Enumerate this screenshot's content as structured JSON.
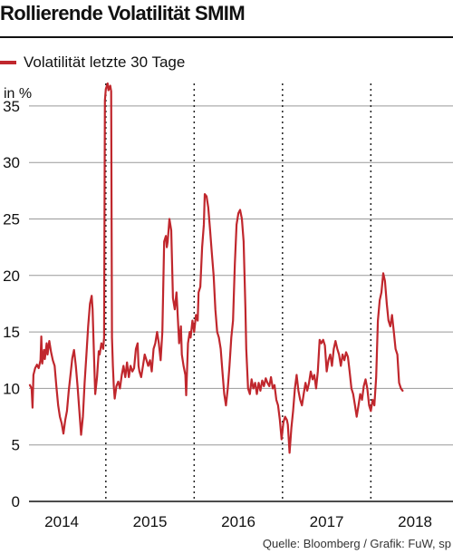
{
  "title": "Rollierende Volatilität SMIM",
  "legend": {
    "label": "Volatilität letzte 30 Tage",
    "color": "#c0272d"
  },
  "source": "Quelle: Bloomberg / Grafik: FuW, sp",
  "colors": {
    "line": "#c0272d",
    "grid": "#999999",
    "axis": "#111111"
  },
  "chart_data": {
    "type": "line",
    "title": "Rollierende Volatilität SMIM",
    "ylabel": "in %",
    "xlabel": "",
    "ylim": [
      0,
      37
    ],
    "xlim": [
      2013.63,
      2018.43
    ],
    "y_ticks": [
      0,
      5,
      10,
      15,
      20,
      25,
      30,
      35
    ],
    "x_ticks": [
      {
        "label": "2014",
        "value": 2014.0
      },
      {
        "label": "2015",
        "value": 2015.0
      },
      {
        "label": "2016",
        "value": 2016.0
      },
      {
        "label": "2017",
        "value": 2017.0
      },
      {
        "label": "2018",
        "value": 2018.0
      }
    ],
    "x_gridlines": [
      2014.5,
      2015.5,
      2016.5,
      2017.5
    ],
    "grid": "horizontal solid, vertical dotted at mid-year",
    "series": [
      {
        "name": "Volatilität letzte 30 Tage",
        "points": [
          [
            2013.64,
            10.3
          ],
          [
            2013.66,
            10.0
          ],
          [
            2013.67,
            8.3
          ],
          [
            2013.68,
            11.2
          ],
          [
            2013.7,
            11.8
          ],
          [
            2013.72,
            12.1
          ],
          [
            2013.74,
            11.8
          ],
          [
            2013.76,
            12.5
          ],
          [
            2013.77,
            14.6
          ],
          [
            2013.78,
            12.2
          ],
          [
            2013.8,
            13.4
          ],
          [
            2013.81,
            12.6
          ],
          [
            2013.83,
            14.0
          ],
          [
            2013.84,
            13.0
          ],
          [
            2013.86,
            14.2
          ],
          [
            2013.88,
            13.2
          ],
          [
            2013.9,
            12.5
          ],
          [
            2013.92,
            12.0
          ],
          [
            2013.94,
            10.2
          ],
          [
            2013.96,
            8.5
          ],
          [
            2013.98,
            7.5
          ],
          [
            2014.0,
            6.9
          ],
          [
            2014.02,
            6.0
          ],
          [
            2014.04,
            7.2
          ],
          [
            2014.06,
            8.0
          ],
          [
            2014.08,
            9.8
          ],
          [
            2014.1,
            11.2
          ],
          [
            2014.12,
            12.7
          ],
          [
            2014.14,
            13.4
          ],
          [
            2014.16,
            12.0
          ],
          [
            2014.18,
            10.2
          ],
          [
            2014.2,
            8.0
          ],
          [
            2014.22,
            5.9
          ],
          [
            2014.24,
            7.5
          ],
          [
            2014.26,
            10.5
          ],
          [
            2014.28,
            13.0
          ],
          [
            2014.3,
            15.5
          ],
          [
            2014.32,
            17.5
          ],
          [
            2014.34,
            18.2
          ],
          [
            2014.35,
            17.0
          ],
          [
            2014.37,
            12.0
          ],
          [
            2014.38,
            9.5
          ],
          [
            2014.4,
            11.0
          ],
          [
            2014.42,
            13.3
          ],
          [
            2014.43,
            13.0
          ],
          [
            2014.45,
            14.0
          ],
          [
            2014.47,
            13.5
          ],
          [
            2014.48,
            14.5
          ],
          [
            2014.49,
            35.5
          ],
          [
            2014.5,
            36.5
          ],
          [
            2014.52,
            37.0
          ],
          [
            2014.53,
            36.4
          ],
          [
            2014.55,
            36.8
          ],
          [
            2014.56,
            36.3
          ],
          [
            2014.57,
            14.5
          ],
          [
            2014.58,
            12.0
          ],
          [
            2014.59,
            10.2
          ],
          [
            2014.6,
            9.1
          ],
          [
            2014.62,
            10.2
          ],
          [
            2014.64,
            10.6
          ],
          [
            2014.66,
            10.0
          ],
          [
            2014.68,
            11.2
          ],
          [
            2014.7,
            12.0
          ],
          [
            2014.72,
            11.0
          ],
          [
            2014.74,
            12.3
          ],
          [
            2014.76,
            11.0
          ],
          [
            2014.78,
            12.0
          ],
          [
            2014.8,
            11.5
          ],
          [
            2014.82,
            11.8
          ],
          [
            2014.84,
            13.5
          ],
          [
            2014.86,
            14.0
          ],
          [
            2014.87,
            12.0
          ],
          [
            2014.88,
            11.5
          ],
          [
            2014.9,
            11.0
          ],
          [
            2014.92,
            12.0
          ],
          [
            2014.94,
            13.0
          ],
          [
            2014.96,
            12.5
          ],
          [
            2014.98,
            12.0
          ],
          [
            2015.0,
            12.5
          ],
          [
            2015.02,
            11.5
          ],
          [
            2015.04,
            13.5
          ],
          [
            2015.06,
            14.0
          ],
          [
            2015.08,
            15.0
          ],
          [
            2015.1,
            14.0
          ],
          [
            2015.12,
            12.5
          ],
          [
            2015.14,
            15.0
          ],
          [
            2015.16,
            23.0
          ],
          [
            2015.18,
            23.5
          ],
          [
            2015.19,
            22.5
          ],
          [
            2015.2,
            23.0
          ],
          [
            2015.22,
            25.0
          ],
          [
            2015.24,
            24.0
          ],
          [
            2015.26,
            18.0
          ],
          [
            2015.28,
            17.0
          ],
          [
            2015.3,
            18.5
          ],
          [
            2015.31,
            17.0
          ],
          [
            2015.33,
            14.0
          ],
          [
            2015.35,
            15.5
          ],
          [
            2015.36,
            13.0
          ],
          [
            2015.38,
            12.0
          ],
          [
            2015.4,
            11.2
          ],
          [
            2015.41,
            9.4
          ],
          [
            2015.43,
            14.0
          ],
          [
            2015.45,
            15.0
          ],
          [
            2015.46,
            14.5
          ],
          [
            2015.48,
            16.0
          ],
          [
            2015.5,
            15.0
          ],
          [
            2015.52,
            16.5
          ],
          [
            2015.54,
            16.0
          ],
          [
            2015.55,
            18.5
          ],
          [
            2015.57,
            19.0
          ],
          [
            2015.59,
            22.5
          ],
          [
            2015.61,
            24.5
          ],
          [
            2015.62,
            27.2
          ],
          [
            2015.64,
            27.0
          ],
          [
            2015.66,
            26.0
          ],
          [
            2015.68,
            24.0
          ],
          [
            2015.7,
            22.0
          ],
          [
            2015.72,
            20.0
          ],
          [
            2015.74,
            17.0
          ],
          [
            2015.76,
            15.0
          ],
          [
            2015.78,
            14.5
          ],
          [
            2015.8,
            13.5
          ],
          [
            2015.82,
            11.5
          ],
          [
            2015.84,
            9.5
          ],
          [
            2015.86,
            8.5
          ],
          [
            2015.88,
            10.0
          ],
          [
            2015.9,
            12.0
          ],
          [
            2015.92,
            14.5
          ],
          [
            2015.94,
            16.0
          ],
          [
            2015.96,
            21.0
          ],
          [
            2015.98,
            24.5
          ],
          [
            2016.0,
            25.5
          ],
          [
            2016.02,
            25.8
          ],
          [
            2016.04,
            25.0
          ],
          [
            2016.06,
            23.0
          ],
          [
            2016.08,
            17.0
          ],
          [
            2016.09,
            13.5
          ],
          [
            2016.11,
            10.0
          ],
          [
            2016.13,
            9.5
          ],
          [
            2016.15,
            10.8
          ],
          [
            2016.17,
            10.0
          ],
          [
            2016.19,
            10.5
          ],
          [
            2016.21,
            9.5
          ],
          [
            2016.23,
            10.5
          ],
          [
            2016.25,
            9.8
          ],
          [
            2016.27,
            10.7
          ],
          [
            2016.29,
            10.2
          ],
          [
            2016.31,
            10.9
          ],
          [
            2016.33,
            10.5
          ],
          [
            2016.35,
            10.2
          ],
          [
            2016.37,
            11.0
          ],
          [
            2016.39,
            10.0
          ],
          [
            2016.41,
            10.3
          ],
          [
            2016.43,
            9.0
          ],
          [
            2016.45,
            8.5
          ],
          [
            2016.47,
            7.2
          ],
          [
            2016.49,
            5.5
          ],
          [
            2016.51,
            7.0
          ],
          [
            2016.53,
            7.5
          ],
          [
            2016.55,
            7.2
          ],
          [
            2016.56,
            6.8
          ],
          [
            2016.58,
            4.3
          ],
          [
            2016.6,
            6.5
          ],
          [
            2016.62,
            8.0
          ],
          [
            2016.64,
            10.0
          ],
          [
            2016.66,
            11.2
          ],
          [
            2016.68,
            9.8
          ],
          [
            2016.7,
            9.0
          ],
          [
            2016.72,
            8.5
          ],
          [
            2016.74,
            9.5
          ],
          [
            2016.76,
            10.5
          ],
          [
            2016.78,
            9.8
          ],
          [
            2016.8,
            10.5
          ],
          [
            2016.82,
            11.5
          ],
          [
            2016.84,
            10.8
          ],
          [
            2016.86,
            11.2
          ],
          [
            2016.88,
            10.0
          ],
          [
            2016.9,
            11.5
          ],
          [
            2016.92,
            14.3
          ],
          [
            2016.94,
            14.0
          ],
          [
            2016.96,
            14.3
          ],
          [
            2016.98,
            13.8
          ],
          [
            2017.0,
            11.5
          ],
          [
            2017.02,
            12.5
          ],
          [
            2017.04,
            13.0
          ],
          [
            2017.06,
            12.0
          ],
          [
            2017.08,
            13.5
          ],
          [
            2017.1,
            14.2
          ],
          [
            2017.12,
            13.5
          ],
          [
            2017.14,
            13.0
          ],
          [
            2017.16,
            12.0
          ],
          [
            2017.18,
            13.0
          ],
          [
            2017.2,
            12.5
          ],
          [
            2017.22,
            13.2
          ],
          [
            2017.24,
            12.8
          ],
          [
            2017.26,
            11.5
          ],
          [
            2017.28,
            10.0
          ],
          [
            2017.3,
            9.5
          ],
          [
            2017.32,
            8.5
          ],
          [
            2017.34,
            7.5
          ],
          [
            2017.36,
            8.5
          ],
          [
            2017.38,
            9.5
          ],
          [
            2017.4,
            9.0
          ],
          [
            2017.42,
            10.2
          ],
          [
            2017.44,
            10.8
          ],
          [
            2017.46,
            10.0
          ],
          [
            2017.48,
            8.5
          ],
          [
            2017.5,
            8.0
          ],
          [
            2017.52,
            9.0
          ],
          [
            2017.54,
            8.5
          ],
          [
            2017.56,
            11.0
          ],
          [
            2017.58,
            16.0
          ],
          [
            2017.6,
            17.8
          ],
          [
            2017.62,
            18.5
          ],
          [
            2017.64,
            20.2
          ],
          [
            2017.66,
            19.5
          ],
          [
            2017.68,
            17.5
          ],
          [
            2017.7,
            16.0
          ],
          [
            2017.72,
            15.5
          ],
          [
            2017.74,
            16.5
          ],
          [
            2017.76,
            15.0
          ],
          [
            2017.78,
            13.5
          ],
          [
            2017.8,
            13.0
          ],
          [
            2017.82,
            10.5
          ],
          [
            2017.84,
            10.0
          ],
          [
            2017.86,
            9.8
          ]
        ]
      }
    ]
  }
}
